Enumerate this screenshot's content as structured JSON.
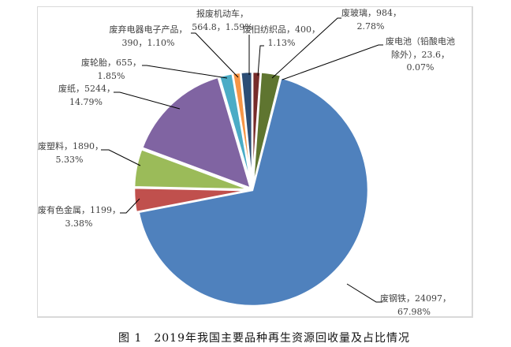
{
  "chart_data": {
    "type": "pie",
    "title": "图 1　2019年我国主要品种再生资源回收量及占比情况",
    "start": "12 o'clock, clockwise",
    "slices": [
      {
        "name": "废旧纺织品",
        "value": 400,
        "percent": 1.13,
        "color": "#772c2a",
        "label": [
          "废旧纺织品，400，",
          "1.13%"
        ]
      },
      {
        "name": "废玻璃",
        "value": 984,
        "percent": 2.78,
        "color": "#5f7530",
        "label": [
          "废玻璃，984，",
          "2.78%"
        ]
      },
      {
        "name": "废电池（铅酸电池除外）",
        "value": 23.6,
        "percent": 0.07,
        "color": "#4d3b62",
        "label": [
          "废电池（铅酸电池",
          "除外），23.6，",
          "0.07%"
        ]
      },
      {
        "name": "废钢铁",
        "value": 24097,
        "percent": 67.98,
        "color": "#4f81bd",
        "label": [
          "废钢铁，24097，",
          "67.98%"
        ]
      },
      {
        "name": "废有色金属",
        "value": 1199,
        "percent": 3.38,
        "color": "#c0504d",
        "label": [
          "废有色金属，1199，",
          "3.38%"
        ]
      },
      {
        "name": "废塑料",
        "value": 1890,
        "percent": 5.33,
        "color": "#9bbb59",
        "label": [
          "废塑料，1890，",
          "5.33%"
        ]
      },
      {
        "name": "废纸",
        "value": 5244,
        "percent": 14.79,
        "color": "#8064a2",
        "label": [
          "废纸，5244，",
          "14.79%"
        ]
      },
      {
        "name": "废轮胎",
        "value": 655,
        "percent": 1.85,
        "color": "#4bacc6",
        "label": [
          "废轮胎，655，",
          "1.85%"
        ]
      },
      {
        "name": "废弃电器电子产品",
        "value": 390,
        "percent": 1.1,
        "color": "#f79646",
        "label": [
          "废弃电器电子产品，",
          "390，1.10%"
        ]
      },
      {
        "name": "报废机动车",
        "value": 564.8,
        "percent": 1.59,
        "color": "#2c4d75",
        "label": [
          "报废机动车，",
          "564.8，1.59%"
        ]
      }
    ]
  }
}
